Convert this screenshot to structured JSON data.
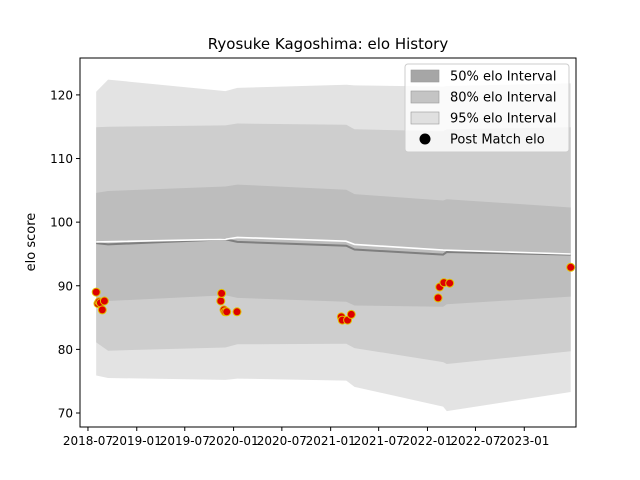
{
  "chart_data": {
    "type": "line",
    "title": "Ryosuke Kagoshima: elo History",
    "xlabel": "",
    "ylabel": "elo score",
    "xlim": [
      "2018-06-01",
      "2023-07-15"
    ],
    "ylim": [
      67.8,
      125.8
    ],
    "x_ticks": [
      "2018-07",
      "2019-01",
      "2019-07",
      "2020-01",
      "2020-07",
      "2021-01",
      "2021-07",
      "2022-01",
      "2022-07",
      "2023-01"
    ],
    "y_ticks": [
      70,
      80,
      90,
      100,
      110,
      120
    ],
    "grid": false,
    "legend_position": "top-right",
    "legend": [
      {
        "label": "50% elo Interval",
        "swatch": "band",
        "color": "#a6a6a6"
      },
      {
        "label": "80% elo Interval",
        "swatch": "band",
        "color": "#c4c4c4"
      },
      {
        "label": "95% elo Interval",
        "swatch": "band",
        "color": "#e0e0e0"
      },
      {
        "label": "Post Match elo",
        "swatch": "dot",
        "color": "#000000"
      }
    ],
    "colors": {
      "band95": "#e3e3e3",
      "band80": "#cecece",
      "band50": "#bdbdbd",
      "mean_line": "#7f7f7f",
      "prior_line": "#ffffff",
      "point_fill": "#dd0000",
      "point_edge": "#e0c000"
    },
    "series": [
      {
        "name": "Post Match elo",
        "kind": "points",
        "x": [
          "2018-08-01",
          "2018-08-08",
          "2018-08-12",
          "2018-08-17",
          "2018-08-24",
          "2018-09-01",
          "2019-11-14",
          "2019-11-17",
          "2019-11-26",
          "2019-11-30",
          "2019-12-06",
          "2020-01-14",
          "2021-02-10",
          "2021-02-14",
          "2021-03-06",
          "2021-03-20",
          "2022-02-10",
          "2022-02-16",
          "2022-03-04",
          "2022-03-26",
          "2023-06-25"
        ],
        "y": [
          89.0,
          87.2,
          87.5,
          87.3,
          86.2,
          87.6,
          87.6,
          88.8,
          86.2,
          85.9,
          85.9,
          85.9,
          85.1,
          84.6,
          84.6,
          85.5,
          88.1,
          89.8,
          90.5,
          90.4,
          92.9
        ]
      }
    ],
    "bands": {
      "x": [
        "2018-08-01",
        "2018-09-15",
        "2019-12-01",
        "2020-01-15",
        "2021-03-01",
        "2021-04-01",
        "2022-03-01",
        "2022-03-15",
        "2023-06-25"
      ],
      "mean": [
        96.7,
        96.5,
        97.3,
        96.9,
        96.3,
        95.7,
        94.9,
        95.3,
        94.9
      ],
      "lo50": [
        87.7,
        87.6,
        88.5,
        88.1,
        87.5,
        86.9,
        86.7,
        87.1,
        88.3
      ],
      "hi50": [
        104.6,
        104.9,
        105.6,
        105.9,
        105.1,
        104.4,
        103.4,
        103.6,
        102.3
      ],
      "lo80": [
        81.1,
        79.8,
        80.3,
        80.8,
        80.9,
        80.2,
        78.0,
        77.7,
        79.7
      ],
      "hi80": [
        114.9,
        115.0,
        115.2,
        115.5,
        115.3,
        114.6,
        114.3,
        114.6,
        114.9
      ],
      "lo95": [
        75.9,
        75.5,
        75.2,
        75.4,
        75.1,
        74.1,
        71.0,
        70.3,
        73.3
      ],
      "hi95": [
        120.5,
        122.4,
        120.6,
        121.1,
        121.6,
        121.5,
        121.3,
        121.4,
        121.8
      ]
    },
    "prior_line": {
      "x": [
        "2018-08-01",
        "2019-12-01",
        "2020-01-15",
        "2021-02-28",
        "2021-04-01",
        "2022-03-01",
        "2023-06-25"
      ],
      "y": [
        96.9,
        97.3,
        97.6,
        97.0,
        96.5,
        95.6,
        95.0
      ]
    }
  }
}
